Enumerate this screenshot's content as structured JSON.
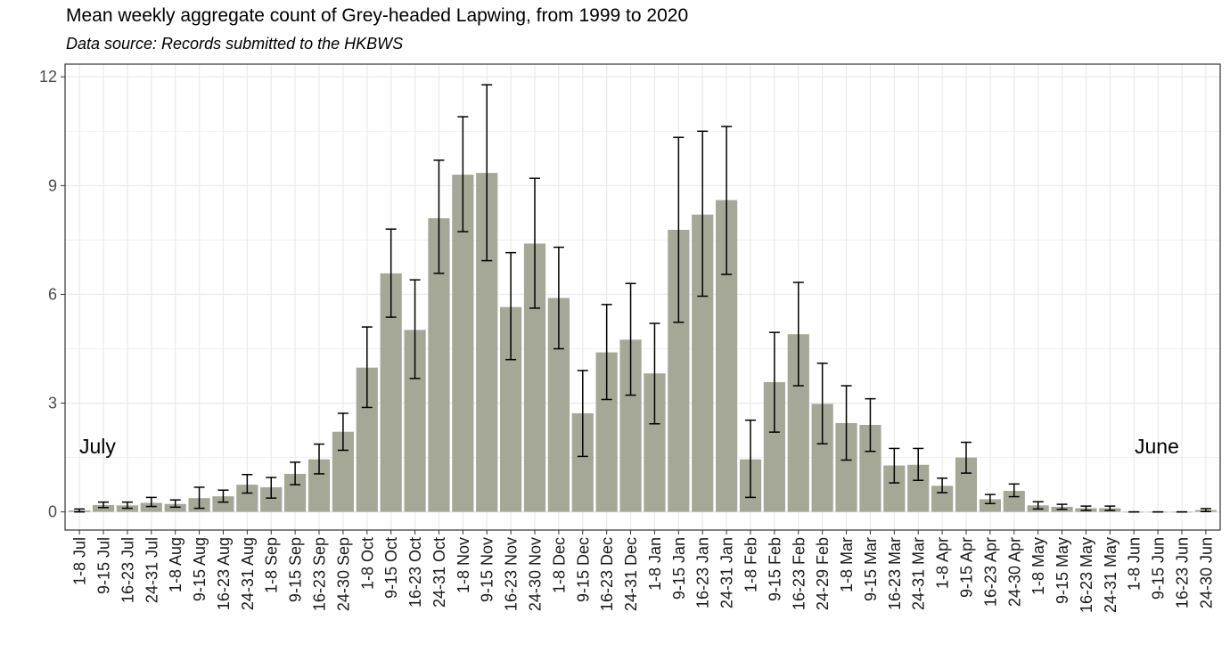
{
  "title": "Mean weekly aggregate count of Grey-headed Lapwing, from 1999 to 2020",
  "subtitle": "Data source: Records submitted to the HKBWS",
  "colors": {
    "bar": "#a5a897",
    "grid": "#ebebeb",
    "panel_border": "#333333",
    "error_bar": "#000000"
  },
  "chart_data": {
    "type": "bar",
    "title": "Mean weekly aggregate count of Grey-headed Lapwing, from 1999 to 2020",
    "subtitle": "Data source: Records submitted to the HKBWS",
    "xlabel": "",
    "ylabel": "",
    "ylim": [
      -0.5,
      12.35
    ],
    "yticks": [
      0,
      3,
      6,
      9,
      12
    ],
    "grid": true,
    "error_bars": true,
    "categories": [
      "1-8 Jul",
      "9-15 Jul",
      "16-23 Jul",
      "24-31 Jul",
      "1-8 Aug",
      "9-15 Aug",
      "16-23 Aug",
      "24-31 Aug",
      "1-8 Sep",
      "9-15 Sep",
      "16-23 Sep",
      "24-30 Sep",
      "1-8 Oct",
      "9-15 Oct",
      "16-23 Oct",
      "24-31 Oct",
      "1-8 Nov",
      "9-15 Nov",
      "16-23 Nov",
      "24-30 Nov",
      "1-8 Dec",
      "9-15 Dec",
      "16-23 Dec",
      "24-31 Dec",
      "1-8 Jan",
      "9-15 Jan",
      "16-23 Jan",
      "24-31 Jan",
      "1-8 Feb",
      "9-15 Feb",
      "16-23 Feb",
      "24-29 Feb",
      "1-8 Mar",
      "9-15 Mar",
      "16-23 Mar",
      "24-31 Mar",
      "1-8 Apr",
      "9-15 Apr",
      "16-23 Apr",
      "24-30 Apr",
      "1-8 May",
      "9-15 May",
      "16-23 May",
      "24-31 May",
      "1-8 Jun",
      "9-15 Jun",
      "16-23 Jun",
      "24-30 Jun"
    ],
    "values": [
      0.04,
      0.19,
      0.18,
      0.25,
      0.22,
      0.38,
      0.43,
      0.75,
      0.68,
      1.05,
      1.45,
      2.21,
      3.98,
      6.58,
      5.02,
      8.1,
      9.3,
      9.35,
      5.65,
      7.4,
      5.9,
      2.72,
      4.4,
      4.75,
      3.82,
      7.78,
      8.2,
      8.6,
      1.45,
      3.58,
      4.9,
      2.98,
      2.45,
      2.4,
      1.28,
      1.3,
      0.72,
      1.5,
      0.35,
      0.58,
      0.18,
      0.14,
      0.1,
      0.1,
      0.0,
      0.0,
      0.0,
      0.05
    ],
    "error_low": [
      0.0,
      0.12,
      0.1,
      0.15,
      0.13,
      0.1,
      0.27,
      0.52,
      0.38,
      0.75,
      1.05,
      1.7,
      2.88,
      5.37,
      3.68,
      6.58,
      7.73,
      6.93,
      4.2,
      5.62,
      4.5,
      1.53,
      3.1,
      3.22,
      2.43,
      5.23,
      5.95,
      6.55,
      0.4,
      2.2,
      3.48,
      1.88,
      1.43,
      1.67,
      0.8,
      0.87,
      0.53,
      1.07,
      0.23,
      0.42,
      0.08,
      0.07,
      0.04,
      0.04,
      0.0,
      0.0,
      0.0,
      0.01
    ],
    "error_high": [
      0.08,
      0.27,
      0.27,
      0.4,
      0.33,
      0.68,
      0.6,
      1.03,
      0.95,
      1.37,
      1.87,
      2.72,
      5.1,
      7.8,
      6.4,
      9.7,
      10.9,
      11.78,
      7.15,
      9.2,
      7.3,
      3.9,
      5.72,
      6.3,
      5.2,
      10.33,
      10.5,
      10.63,
      2.53,
      4.95,
      6.33,
      4.1,
      3.48,
      3.12,
      1.75,
      1.75,
      0.93,
      1.92,
      0.48,
      0.77,
      0.28,
      0.21,
      0.16,
      0.16,
      0.0,
      0.0,
      0.0,
      0.09
    ],
    "annotations": [
      {
        "text": "July",
        "position": "left"
      },
      {
        "text": "June",
        "position": "right"
      }
    ]
  }
}
